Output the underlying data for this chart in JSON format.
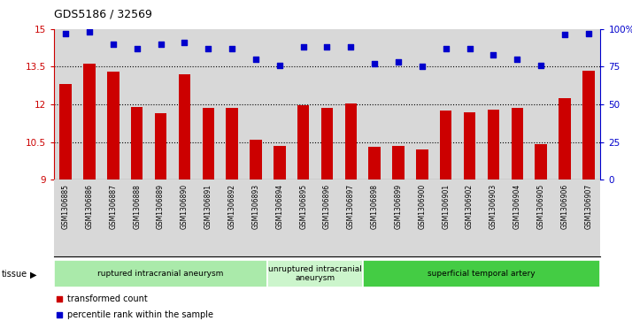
{
  "title": "GDS5186 / 32569",
  "samples": [
    "GSM1306885",
    "GSM1306886",
    "GSM1306887",
    "GSM1306888",
    "GSM1306889",
    "GSM1306890",
    "GSM1306891",
    "GSM1306892",
    "GSM1306893",
    "GSM1306894",
    "GSM1306895",
    "GSM1306896",
    "GSM1306897",
    "GSM1306898",
    "GSM1306899",
    "GSM1306900",
    "GSM1306901",
    "GSM1306902",
    "GSM1306903",
    "GSM1306904",
    "GSM1306905",
    "GSM1306906",
    "GSM1306907"
  ],
  "transformed_count": [
    12.8,
    13.6,
    13.3,
    11.9,
    11.65,
    13.2,
    11.85,
    11.85,
    10.6,
    10.35,
    11.95,
    11.85,
    12.05,
    10.3,
    10.35,
    10.2,
    11.75,
    11.7,
    11.8,
    11.85,
    10.4,
    12.25,
    13.35
  ],
  "percentile_rank": [
    97,
    98,
    90,
    87,
    90,
    91,
    87,
    87,
    80,
    76,
    88,
    88,
    88,
    77,
    78,
    75,
    87,
    87,
    83,
    80,
    76,
    96,
    97
  ],
  "bar_color": "#cc0000",
  "dot_color": "#0000cc",
  "ylim_left": [
    9,
    15
  ],
  "ylim_right": [
    0,
    100
  ],
  "yticks_left": [
    9,
    10.5,
    12,
    13.5,
    15
  ],
  "ytick_labels_left": [
    "9",
    "10.5",
    "12",
    "13.5",
    "15"
  ],
  "yticks_right": [
    0,
    25,
    50,
    75,
    100
  ],
  "ytick_labels_right": [
    "0",
    "25",
    "50",
    "75",
    "100%"
  ],
  "groups": [
    {
      "label": "ruptured intracranial aneurysm",
      "start": 0,
      "end": 9,
      "color": "#aaeaaa"
    },
    {
      "label": "unruptured intracranial\naneurysm",
      "start": 9,
      "end": 13,
      "color": "#ccf5cc"
    },
    {
      "label": "superficial temporal artery",
      "start": 13,
      "end": 23,
      "color": "#44cc44"
    }
  ],
  "legend_bar_label": "transformed count",
  "legend_dot_label": "percentile rank within the sample",
  "tissue_label": "tissue",
  "plot_bg_color": "#d8d8d8",
  "dotted_line_color": "#000000",
  "bar_width": 0.5,
  "dot_size": 18
}
